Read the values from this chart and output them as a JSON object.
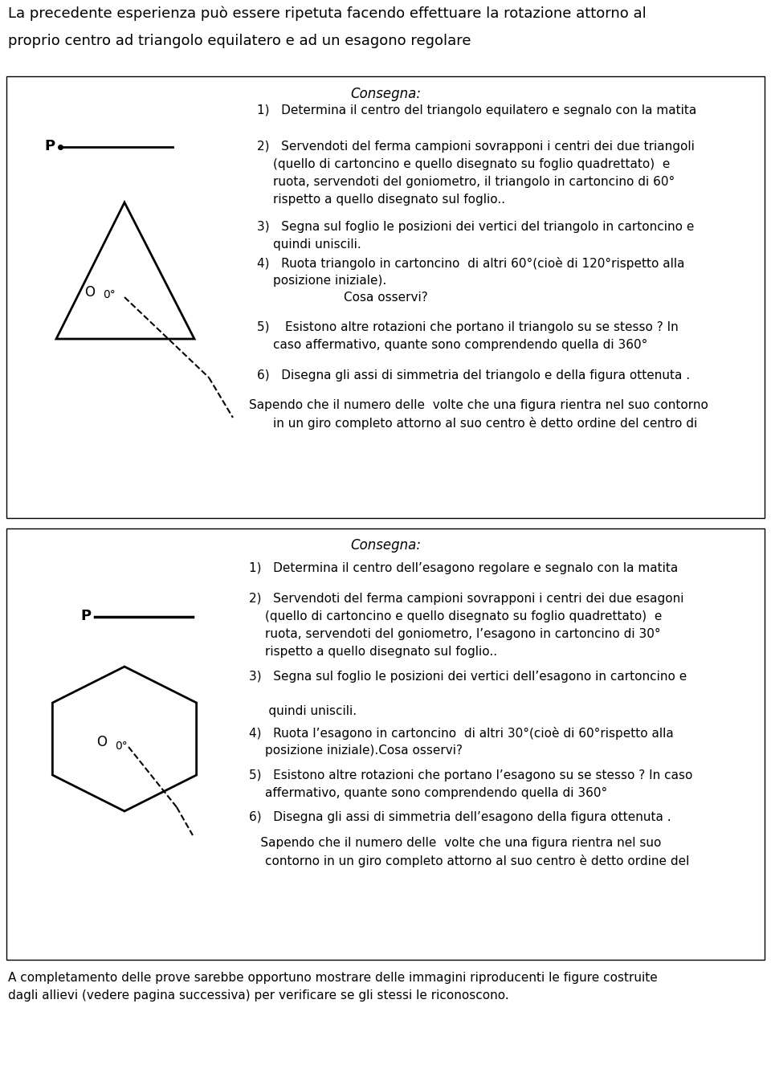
{
  "title_line1": "La precedente esperienza può essere ripetuta facendo effettuare la rotazione attorno al",
  "title_line2": "proprio centro ad triangolo equilatero e ad un esagono regolare",
  "footer_line1": "A completamento delle prove sarebbe opportuno mostrare delle immagini riproducenti le figure costruite",
  "footer_line2": "dagli allievi (vedere pagina successiva) per verificare se gli stessi le riconoscono.",
  "box1_consegna": "Consegna:",
  "box2_consegna": "Consegna:"
}
